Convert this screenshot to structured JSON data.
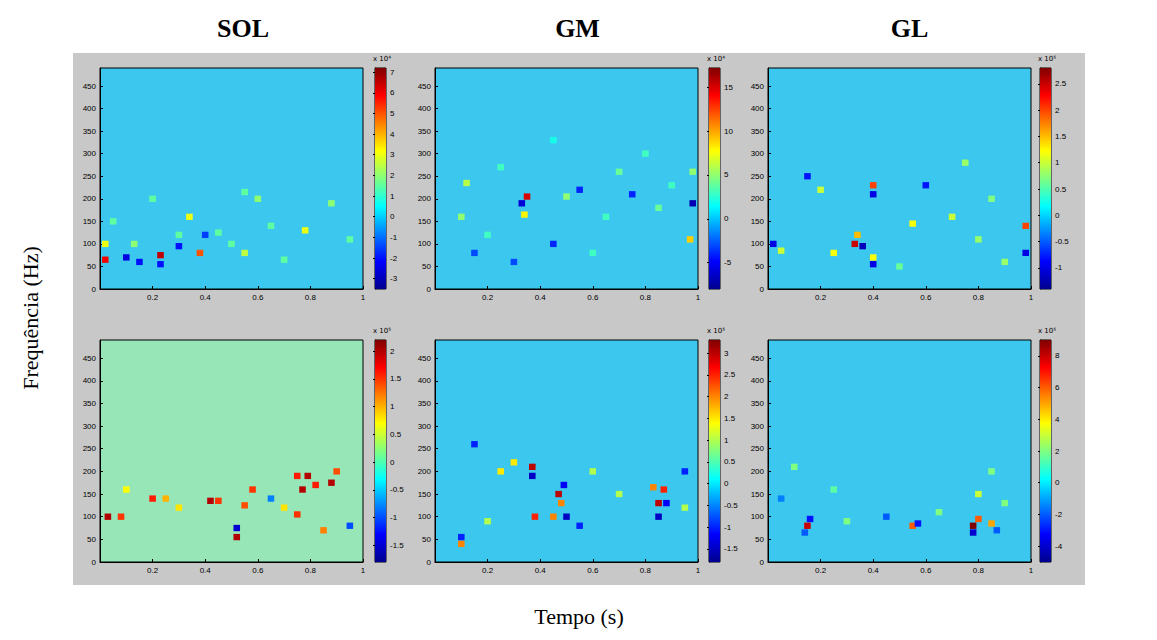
{
  "column_titles": [
    "SOL",
    "GM",
    "GL"
  ],
  "xlabel": "Tempo (s)",
  "ylabel": "Frequência (Hz)",
  "chart_data": [
    {
      "type": "heatmap",
      "grid": false,
      "xlim": [
        0,
        1
      ],
      "xticks": [
        0.2,
        0.4,
        0.6,
        0.8,
        1
      ],
      "ylim": [
        0,
        490
      ],
      "yticks": [
        0,
        50,
        100,
        150,
        200,
        250,
        300,
        350,
        400,
        450
      ],
      "cells": [
        [
          0.02,
          65,
          60000
        ],
        [
          0.02,
          100,
          30000
        ],
        [
          0.23,
          75,
          65000
        ],
        [
          0.23,
          55,
          -20000
        ],
        [
          0.38,
          80,
          50000
        ],
        [
          0.34,
          160,
          30000
        ],
        [
          0.13,
          100,
          20000
        ],
        [
          0.1,
          70,
          -25000
        ],
        [
          0.3,
          95,
          -20000
        ],
        [
          0.55,
          80,
          25000
        ],
        [
          0.6,
          200,
          20000
        ],
        [
          0.55,
          215,
          15000
        ],
        [
          0.65,
          140,
          15000
        ],
        [
          0.78,
          130,
          30000
        ],
        [
          0.88,
          190,
          20000
        ],
        [
          0.5,
          100,
          15000
        ],
        [
          0.45,
          125,
          15000
        ],
        [
          0.2,
          200,
          15000
        ],
        [
          0.05,
          150,
          15000
        ],
        [
          0.3,
          120,
          15000
        ],
        [
          0.95,
          110,
          15000
        ],
        [
          0.7,
          65,
          15000
        ],
        [
          0.4,
          120,
          -15000
        ],
        [
          0.15,
          60,
          -20000
        ]
      ],
      "colorbar": {
        "range": [
          -35000,
          72000
        ],
        "scale_label": "x 10⁴",
        "ticks": [
          {
            "value": -30000,
            "label": "-3"
          },
          {
            "value": -20000,
            "label": "-2"
          },
          {
            "value": -10000,
            "label": "-1"
          },
          0,
          {
            "value": 10000,
            "label": "1"
          },
          {
            "value": 20000,
            "label": "2"
          },
          {
            "value": 30000,
            "label": "3"
          },
          {
            "value": 40000,
            "label": "4"
          },
          {
            "value": 50000,
            "label": "5"
          },
          {
            "value": 60000,
            "label": "6"
          },
          {
            "value": 70000,
            "label": "7"
          }
        ]
      }
    },
    {
      "type": "heatmap",
      "grid": false,
      "xlim": [
        0,
        1
      ],
      "xticks": [
        0.2,
        0.4,
        0.6,
        0.8,
        1
      ],
      "ylim": [
        0,
        490
      ],
      "yticks": [
        0,
        50,
        100,
        150,
        200,
        250,
        300,
        350,
        400,
        450
      ],
      "cells": [
        [
          0.35,
          205,
          150000
        ],
        [
          0.34,
          165,
          80000
        ],
        [
          0.33,
          190,
          -60000
        ],
        [
          0.12,
          235,
          60000
        ],
        [
          0.1,
          160,
          50000
        ],
        [
          0.2,
          120,
          30000
        ],
        [
          0.25,
          270,
          30000
        ],
        [
          0.5,
          205,
          50000
        ],
        [
          0.55,
          220,
          -40000
        ],
        [
          0.65,
          160,
          30000
        ],
        [
          0.7,
          260,
          40000
        ],
        [
          0.8,
          300,
          30000
        ],
        [
          0.85,
          180,
          40000
        ],
        [
          0.97,
          110,
          90000
        ],
        [
          0.98,
          190,
          -70000
        ],
        [
          0.98,
          260,
          50000
        ],
        [
          0.45,
          100,
          -40000
        ],
        [
          0.6,
          80,
          30000
        ],
        [
          0.3,
          60,
          -30000
        ],
        [
          0.15,
          80,
          -30000
        ],
        [
          0.75,
          210,
          -40000
        ],
        [
          0.9,
          230,
          30000
        ],
        [
          0.45,
          330,
          20000
        ]
      ],
      "colorbar": {
        "range": [
          -80000,
          172000
        ],
        "scale_label": "x 10⁴",
        "ticks": [
          {
            "value": -50000,
            "label": "-5"
          },
          0,
          {
            "value": 50000,
            "label": "5"
          },
          {
            "value": 100000,
            "label": "10"
          },
          {
            "value": 150000,
            "label": "15"
          }
        ]
      }
    },
    {
      "type": "heatmap",
      "grid": false,
      "xlim": [
        0,
        1
      ],
      "xticks": [
        0.2,
        0.4,
        0.6,
        0.8,
        1
      ],
      "ylim": [
        0,
        490
      ],
      "yticks": [
        0,
        50,
        100,
        150,
        200,
        250,
        300,
        350,
        400,
        450
      ],
      "cells": [
        [
          0.33,
          100,
          250000
        ],
        [
          0.34,
          120,
          150000
        ],
        [
          0.36,
          95,
          -120000
        ],
        [
          0.4,
          230,
          200000
        ],
        [
          0.4,
          210,
          -100000
        ],
        [
          0.4,
          70,
          120000
        ],
        [
          0.4,
          55,
          -100000
        ],
        [
          0.02,
          100,
          -100000
        ],
        [
          0.05,
          85,
          100000
        ],
        [
          0.2,
          220,
          100000
        ],
        [
          0.25,
          80,
          120000
        ],
        [
          0.55,
          145,
          120000
        ],
        [
          0.7,
          160,
          100000
        ],
        [
          0.75,
          280,
          80000
        ],
        [
          0.8,
          110,
          80000
        ],
        [
          0.98,
          140,
          200000
        ],
        [
          0.98,
          80,
          -100000
        ],
        [
          0.6,
          230,
          -80000
        ],
        [
          0.15,
          250,
          -80000
        ],
        [
          0.9,
          60,
          80000
        ],
        [
          0.5,
          50,
          60000
        ],
        [
          0.85,
          200,
          70000
        ]
      ],
      "colorbar": {
        "range": [
          -140000,
          280000
        ],
        "scale_label": "x 10⁵",
        "ticks": [
          {
            "value": -100000,
            "label": "-1"
          },
          {
            "value": -50000,
            "label": "-0.5"
          },
          0,
          {
            "value": 50000,
            "label": "0.5"
          },
          {
            "value": 100000,
            "label": "1"
          },
          {
            "value": 150000,
            "label": "1.5"
          },
          {
            "value": 200000,
            "label": "2"
          },
          {
            "value": 250000,
            "label": "2.5"
          }
        ]
      }
    },
    {
      "type": "heatmap",
      "grid": false,
      "xlim": [
        0,
        1
      ],
      "xticks": [
        0.2,
        0.4,
        0.6,
        0.8,
        1
      ],
      "ylim": [
        0,
        490
      ],
      "yticks": [
        0,
        50,
        100,
        150,
        200,
        250,
        300,
        350,
        400,
        450
      ],
      "cells": [
        [
          0.03,
          100,
          200000
        ],
        [
          0.08,
          100,
          150000
        ],
        [
          0.2,
          140,
          160000
        ],
        [
          0.25,
          140,
          100000
        ],
        [
          0.42,
          135,
          200000
        ],
        [
          0.45,
          135,
          150000
        ],
        [
          0.52,
          55,
          200000
        ],
        [
          0.52,
          75,
          -150000
        ],
        [
          0.55,
          125,
          140000
        ],
        [
          0.58,
          160,
          150000
        ],
        [
          0.75,
          190,
          160000
        ],
        [
          0.77,
          160,
          200000
        ],
        [
          0.79,
          190,
          200000
        ],
        [
          0.82,
          170,
          160000
        ],
        [
          0.88,
          175,
          200000
        ],
        [
          0.9,
          200,
          140000
        ],
        [
          0.75,
          105,
          150000
        ],
        [
          0.85,
          70,
          120000
        ],
        [
          0.7,
          120,
          80000
        ],
        [
          0.3,
          120,
          80000
        ],
        [
          0.1,
          160,
          70000
        ],
        [
          0.95,
          80,
          -100000
        ],
        [
          0.65,
          140,
          -80000
        ]
      ],
      "colorbar": {
        "range": [
          -180000,
          220000
        ],
        "scale_label": "x 10⁵",
        "ticks": [
          {
            "value": -150000,
            "label": "-1.5"
          },
          {
            "value": -100000,
            "label": "-1"
          },
          {
            "value": -50000,
            "label": "-0.5"
          },
          0,
          {
            "value": 50000,
            "label": "0.5"
          },
          {
            "value": 100000,
            "label": "1"
          },
          {
            "value": 150000,
            "label": "1.5"
          },
          {
            "value": 200000,
            "label": "2"
          }
        ]
      }
    },
    {
      "type": "heatmap",
      "grid": false,
      "xlim": [
        0,
        1
      ],
      "xticks": [
        0.2,
        0.4,
        0.6,
        0.8,
        1
      ],
      "ylim": [
        0,
        490
      ],
      "yticks": [
        0,
        50,
        100,
        150,
        200,
        250,
        300,
        350,
        400,
        450
      ],
      "cells": [
        [
          0.1,
          40,
          200000
        ],
        [
          0.1,
          55,
          -100000
        ],
        [
          0.37,
          210,
          300000
        ],
        [
          0.37,
          190,
          -150000
        ],
        [
          0.38,
          100,
          250000
        ],
        [
          0.45,
          100,
          200000
        ],
        [
          0.47,
          150,
          300000
        ],
        [
          0.48,
          130,
          200000
        ],
        [
          0.5,
          100,
          -150000
        ],
        [
          0.49,
          170,
          -120000
        ],
        [
          0.85,
          130,
          300000
        ],
        [
          0.87,
          160,
          250000
        ],
        [
          0.83,
          165,
          200000
        ],
        [
          0.85,
          100,
          -150000
        ],
        [
          0.88,
          130,
          -120000
        ],
        [
          0.25,
          200,
          150000
        ],
        [
          0.3,
          220,
          150000
        ],
        [
          0.6,
          200,
          100000
        ],
        [
          0.7,
          150,
          100000
        ],
        [
          0.95,
          120,
          100000
        ],
        [
          0.2,
          90,
          100000
        ],
        [
          0.15,
          260,
          -100000
        ],
        [
          0.55,
          80,
          -100000
        ],
        [
          0.95,
          200,
          -100000
        ]
      ],
      "colorbar": {
        "range": [
          -180000,
          330000
        ],
        "scale_label": "x 10⁵",
        "ticks": [
          {
            "value": -150000,
            "label": "-1.5"
          },
          {
            "value": -100000,
            "label": "-1"
          },
          {
            "value": -50000,
            "label": "-0.5"
          },
          0,
          {
            "value": 50000,
            "label": "0.5"
          },
          {
            "value": 100000,
            "label": "1"
          },
          {
            "value": 150000,
            "label": "1.5"
          },
          {
            "value": 200000,
            "label": "2"
          },
          {
            "value": 250000,
            "label": "2.5"
          },
          {
            "value": 300000,
            "label": "3"
          }
        ]
      }
    },
    {
      "type": "heatmap",
      "grid": false,
      "xlim": [
        0,
        1
      ],
      "xticks": [
        0.2,
        0.4,
        0.6,
        0.8,
        1
      ],
      "ylim": [
        0,
        490
      ],
      "yticks": [
        0,
        50,
        100,
        150,
        200,
        250,
        300,
        350,
        400,
        450
      ],
      "cells": [
        [
          0.15,
          80,
          800000
        ],
        [
          0.16,
          95,
          -300000
        ],
        [
          0.14,
          65,
          -200000
        ],
        [
          0.55,
          80,
          600000
        ],
        [
          0.57,
          85,
          -300000
        ],
        [
          0.78,
          80,
          900000
        ],
        [
          0.8,
          95,
          600000
        ],
        [
          0.78,
          65,
          -400000
        ],
        [
          0.85,
          85,
          500000
        ],
        [
          0.87,
          70,
          -200000
        ],
        [
          0.8,
          150,
          300000
        ],
        [
          0.85,
          200,
          200000
        ],
        [
          0.1,
          210,
          200000
        ],
        [
          0.3,
          90,
          200000
        ],
        [
          0.45,
          100,
          -200000
        ],
        [
          0.65,
          110,
          200000
        ],
        [
          0.25,
          160,
          150000
        ],
        [
          0.9,
          130,
          200000
        ],
        [
          0.05,
          140,
          -150000
        ]
      ],
      "colorbar": {
        "range": [
          -500000,
          900000
        ],
        "scale_label": "x 10⁵",
        "ticks": [
          {
            "value": -400000,
            "label": "-4"
          },
          {
            "value": -200000,
            "label": "-2"
          },
          0,
          {
            "value": 200000,
            "label": "2"
          },
          {
            "value": 400000,
            "label": "4"
          },
          {
            "value": 600000,
            "label": "6"
          },
          {
            "value": 800000,
            "label": "8"
          }
        ]
      }
    }
  ]
}
